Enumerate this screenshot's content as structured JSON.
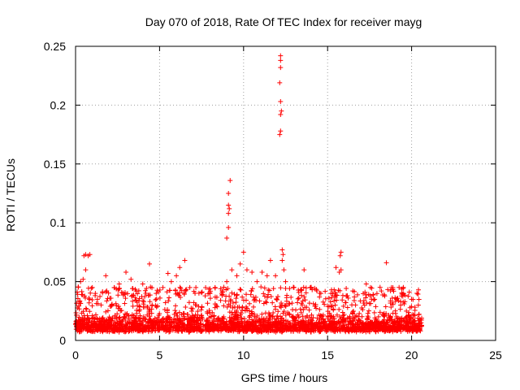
{
  "chart_data": {
    "type": "scatter",
    "title": "Day 070 of 2018, Rate Of TEC Index for receiver mayg",
    "xlabel": "GPS time / hours",
    "ylabel": "ROTI / TECUs",
    "xlim": [
      0,
      25
    ],
    "ylim": [
      0,
      0.25
    ],
    "x_ticks": [
      0,
      5,
      10,
      15,
      20,
      25
    ],
    "x_tick_labels": [
      "0",
      "5",
      "10",
      "15",
      "20",
      "25"
    ],
    "y_ticks": [
      0,
      0.05,
      0.1,
      0.15,
      0.2,
      0.25
    ],
    "y_tick_labels": [
      "0",
      "0.05",
      "0.1",
      "0.15",
      "0.2",
      "0.25"
    ],
    "grid": true,
    "marker": "+",
    "series_color": "#ff0000",
    "series": [
      {
        "name": "ROTI",
        "bulk_bands": [
          {
            "x_start": 0.0,
            "x_end": 7.6,
            "y_min": 0.003,
            "y_max": 0.035
          },
          {
            "x_start": 7.7,
            "x_end": 20.6,
            "y_min": 0.003,
            "y_max": 0.035
          }
        ],
        "points": [
          {
            "x": 0.3,
            "y": 0.05
          },
          {
            "x": 0.45,
            "y": 0.052
          },
          {
            "x": 0.6,
            "y": 0.06
          },
          {
            "x": 0.5,
            "y": 0.072
          },
          {
            "x": 0.6,
            "y": 0.073
          },
          {
            "x": 0.75,
            "y": 0.072
          },
          {
            "x": 0.85,
            "y": 0.073
          },
          {
            "x": 1.0,
            "y": 0.045
          },
          {
            "x": 1.3,
            "y": 0.035
          },
          {
            "x": 1.8,
            "y": 0.055
          },
          {
            "x": 2.3,
            "y": 0.045
          },
          {
            "x": 2.6,
            "y": 0.048
          },
          {
            "x": 3.0,
            "y": 0.058
          },
          {
            "x": 3.3,
            "y": 0.052
          },
          {
            "x": 3.6,
            "y": 0.042
          },
          {
            "x": 4.0,
            "y": 0.048
          },
          {
            "x": 4.4,
            "y": 0.065
          },
          {
            "x": 4.8,
            "y": 0.04
          },
          {
            "x": 5.2,
            "y": 0.045
          },
          {
            "x": 5.5,
            "y": 0.057
          },
          {
            "x": 5.7,
            "y": 0.05
          },
          {
            "x": 6.0,
            "y": 0.055
          },
          {
            "x": 6.2,
            "y": 0.062
          },
          {
            "x": 6.5,
            "y": 0.068
          },
          {
            "x": 6.8,
            "y": 0.045
          },
          {
            "x": 7.2,
            "y": 0.03
          },
          {
            "x": 8.0,
            "y": 0.04
          },
          {
            "x": 8.3,
            "y": 0.045
          },
          {
            "x": 8.7,
            "y": 0.04
          },
          {
            "x": 9.0,
            "y": 0.05
          },
          {
            "x": 9.0,
            "y": 0.087
          },
          {
            "x": 9.1,
            "y": 0.096
          },
          {
            "x": 9.1,
            "y": 0.108
          },
          {
            "x": 9.15,
            "y": 0.112
          },
          {
            "x": 9.1,
            "y": 0.115
          },
          {
            "x": 9.1,
            "y": 0.125
          },
          {
            "x": 9.2,
            "y": 0.136
          },
          {
            "x": 9.3,
            "y": 0.06
          },
          {
            "x": 9.6,
            "y": 0.055
          },
          {
            "x": 9.8,
            "y": 0.065
          },
          {
            "x": 10.0,
            "y": 0.075
          },
          {
            "x": 10.2,
            "y": 0.06
          },
          {
            "x": 10.5,
            "y": 0.058
          },
          {
            "x": 10.8,
            "y": 0.05
          },
          {
            "x": 11.1,
            "y": 0.058
          },
          {
            "x": 11.4,
            "y": 0.055
          },
          {
            "x": 11.6,
            "y": 0.068
          },
          {
            "x": 11.9,
            "y": 0.055
          },
          {
            "x": 12.15,
            "y": 0.175
          },
          {
            "x": 12.2,
            "y": 0.178
          },
          {
            "x": 12.2,
            "y": 0.192
          },
          {
            "x": 12.25,
            "y": 0.195
          },
          {
            "x": 12.2,
            "y": 0.203
          },
          {
            "x": 12.15,
            "y": 0.219
          },
          {
            "x": 12.2,
            "y": 0.232
          },
          {
            "x": 12.2,
            "y": 0.238
          },
          {
            "x": 12.2,
            "y": 0.242
          },
          {
            "x": 12.3,
            "y": 0.077
          },
          {
            "x": 12.35,
            "y": 0.073
          },
          {
            "x": 12.3,
            "y": 0.068
          },
          {
            "x": 12.4,
            "y": 0.06
          },
          {
            "x": 12.5,
            "y": 0.05
          },
          {
            "x": 13.0,
            "y": 0.045
          },
          {
            "x": 13.6,
            "y": 0.06
          },
          {
            "x": 14.0,
            "y": 0.045
          },
          {
            "x": 14.6,
            "y": 0.04
          },
          {
            "x": 15.2,
            "y": 0.04
          },
          {
            "x": 15.5,
            "y": 0.062
          },
          {
            "x": 15.7,
            "y": 0.058
          },
          {
            "x": 15.8,
            "y": 0.06
          },
          {
            "x": 15.8,
            "y": 0.075
          },
          {
            "x": 15.75,
            "y": 0.072
          },
          {
            "x": 16.5,
            "y": 0.042
          },
          {
            "x": 17.3,
            "y": 0.048
          },
          {
            "x": 17.8,
            "y": 0.035
          },
          {
            "x": 18.2,
            "y": 0.042
          },
          {
            "x": 18.5,
            "y": 0.066
          },
          {
            "x": 18.8,
            "y": 0.045
          },
          {
            "x": 19.1,
            "y": 0.035
          },
          {
            "x": 19.6,
            "y": 0.033
          },
          {
            "x": 20.0,
            "y": 0.035
          },
          {
            "x": 20.4,
            "y": 0.03
          }
        ]
      }
    ]
  }
}
